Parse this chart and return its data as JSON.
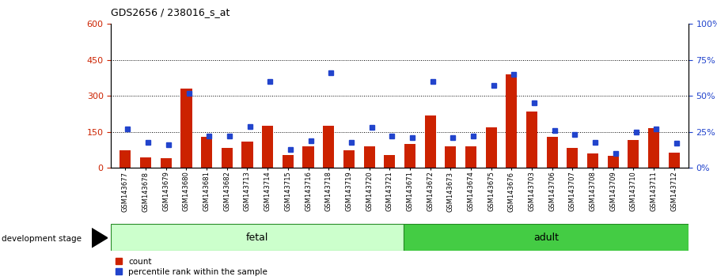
{
  "title": "GDS2656 / 238016_s_at",
  "samples": [
    "GSM143677",
    "GSM143678",
    "GSM143679",
    "GSM143680",
    "GSM143681",
    "GSM143682",
    "GSM143713",
    "GSM143714",
    "GSM143715",
    "GSM143716",
    "GSM143718",
    "GSM143719",
    "GSM143720",
    "GSM143721",
    "GSM143671",
    "GSM143672",
    "GSM143673",
    "GSM143674",
    "GSM143675",
    "GSM143676",
    "GSM143703",
    "GSM143706",
    "GSM143707",
    "GSM143708",
    "GSM143709",
    "GSM143710",
    "GSM143711",
    "GSM143712"
  ],
  "count_values": [
    75,
    45,
    42,
    330,
    130,
    85,
    110,
    175,
    55,
    90,
    175,
    75,
    90,
    55,
    100,
    220,
    90,
    90,
    170,
    390,
    235,
    130,
    85,
    60,
    50,
    115,
    165,
    65
  ],
  "percentile_values": [
    27,
    18,
    16,
    52,
    22,
    22,
    29,
    60,
    13,
    19,
    66,
    18,
    28,
    22,
    21,
    60,
    21,
    22,
    57,
    65,
    45,
    26,
    23,
    18,
    10,
    25,
    27,
    17
  ],
  "fetal_count": 14,
  "adult_count": 14,
  "ylim_left": [
    0,
    600
  ],
  "ylim_right": [
    0,
    100
  ],
  "yticks_left": [
    0,
    150,
    300,
    450,
    600
  ],
  "yticks_right": [
    0,
    25,
    50,
    75,
    100
  ],
  "bar_color_count": "#cc2200",
  "bar_color_percentile": "#2244cc",
  "fetal_color": "#ccffcc",
  "adult_color": "#44cc44",
  "fetal_label": "fetal",
  "adult_label": "adult",
  "dev_stage_label": "development stage",
  "legend_count": "count",
  "legend_percentile": "percentile rank within the sample",
  "background_color": "#d8d8d8"
}
